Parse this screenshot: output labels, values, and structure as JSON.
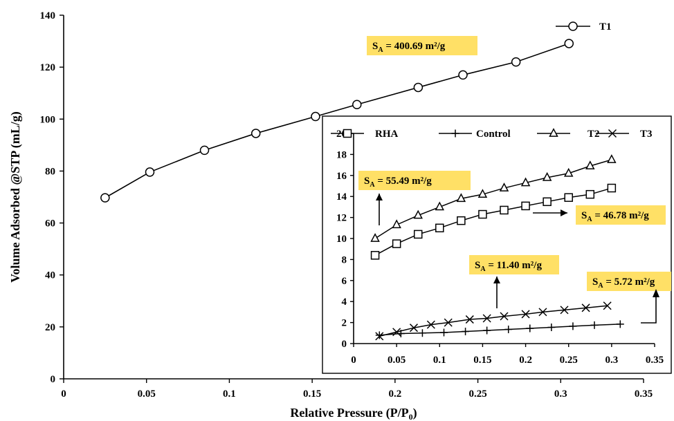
{
  "chart_data": [
    {
      "type": "line",
      "xlabel": "Relative Pressure (P/P",
      "xlabel_sub": "0",
      "xlabel_end": ")",
      "ylabel": "Volume Adsorbed @STP (mL/g)",
      "xlim": [
        0,
        0.35
      ],
      "ylim": [
        0,
        140
      ],
      "x_ticks": [
        0,
        0.05,
        0.1,
        0.15,
        0.2,
        0.25,
        0.3,
        0.35
      ],
      "x_tick_labels": [
        "0",
        "0.05",
        "0.1",
        "0.15",
        "0.2",
        "0.25",
        "0.3",
        "0.35"
      ],
      "y_ticks": [
        0,
        20,
        40,
        60,
        80,
        100,
        120,
        140
      ],
      "y_tick_labels": [
        "0",
        "20",
        "40",
        "60",
        "80",
        "100",
        "120",
        "140"
      ],
      "legend_position": "top-right",
      "series": [
        {
          "name": "T1",
          "marker": "circle",
          "x": [
            0.025,
            0.052,
            0.085,
            0.116,
            0.152,
            0.177,
            0.214,
            0.241,
            0.273,
            0.305
          ],
          "y": [
            69.7,
            79.6,
            88.0,
            94.5,
            101.0,
            105.6,
            112.2,
            117.0,
            122.0,
            129.1
          ]
        }
      ],
      "annotations": [
        {
          "main": "S",
          "sub": "A",
          "text": " = 400.69 m²/g",
          "x": 0.19,
          "y": 130
        }
      ]
    },
    {
      "type": "line",
      "inset": true,
      "xlim": [
        0,
        0.35
      ],
      "ylim": [
        0,
        20
      ],
      "x_ticks": [
        0,
        0.05,
        0.1,
        0.15,
        0.2,
        0.25,
        0.3,
        0.35
      ],
      "x_tick_labels": [
        "0",
        "0.05",
        "0.1",
        "0.15",
        "0.2",
        "0.25",
        "0.3",
        "0.35"
      ],
      "y_ticks": [
        0,
        2,
        4,
        6,
        8,
        10,
        12,
        14,
        16,
        18,
        20
      ],
      "y_tick_labels": [
        "0",
        "2",
        "4",
        "6",
        "8",
        "10",
        "12",
        "14",
        "16",
        "18",
        "20"
      ],
      "legend_position": "top",
      "series": [
        {
          "name": "RHA",
          "marker": "square",
          "x": [
            0.025,
            0.05,
            0.075,
            0.1,
            0.125,
            0.15,
            0.175,
            0.2,
            0.225,
            0.25,
            0.275,
            0.3
          ],
          "y": [
            8.4,
            9.5,
            10.4,
            11.0,
            11.7,
            12.3,
            12.7,
            13.1,
            13.5,
            13.9,
            14.2,
            14.8
          ]
        },
        {
          "name": "Control",
          "marker": "plus",
          "x": [
            0.03,
            0.055,
            0.08,
            0.105,
            0.13,
            0.155,
            0.18,
            0.205,
            0.23,
            0.255,
            0.28,
            0.31
          ],
          "y": [
            0.8,
            0.95,
            1.0,
            1.05,
            1.15,
            1.25,
            1.35,
            1.45,
            1.55,
            1.65,
            1.75,
            1.85
          ]
        },
        {
          "name": "T2",
          "marker": "triangle",
          "x": [
            0.025,
            0.05,
            0.075,
            0.1,
            0.125,
            0.15,
            0.175,
            0.2,
            0.225,
            0.25,
            0.275,
            0.3
          ],
          "y": [
            10.0,
            11.3,
            12.2,
            13.0,
            13.8,
            14.2,
            14.8,
            15.3,
            15.8,
            16.2,
            16.9,
            17.5
          ]
        },
        {
          "name": "T3",
          "marker": "x",
          "x": [
            0.03,
            0.05,
            0.07,
            0.09,
            0.11,
            0.135,
            0.155,
            0.175,
            0.2,
            0.22,
            0.245,
            0.27,
            0.295
          ],
          "y": [
            0.7,
            1.1,
            1.5,
            1.8,
            2.0,
            2.3,
            2.4,
            2.6,
            2.8,
            3.0,
            3.2,
            3.4,
            3.6
          ]
        }
      ],
      "annotations": [
        {
          "main": "S",
          "sub": "A",
          "text": " = 55.49 m²/g",
          "x": 0.057,
          "y": 15.5
        },
        {
          "main": "S",
          "sub": "A",
          "text": " = 46.78 m²/g",
          "x": 0.33,
          "y": 10.9
        },
        {
          "main": "S",
          "sub": "A",
          "text": " = 11.40 m²/g",
          "x": 0.215,
          "y": 5.6
        },
        {
          "main": "S",
          "sub": "A",
          "text": " = 5.72 m²/g",
          "x": 0.33,
          "y": 4.3
        }
      ]
    }
  ]
}
